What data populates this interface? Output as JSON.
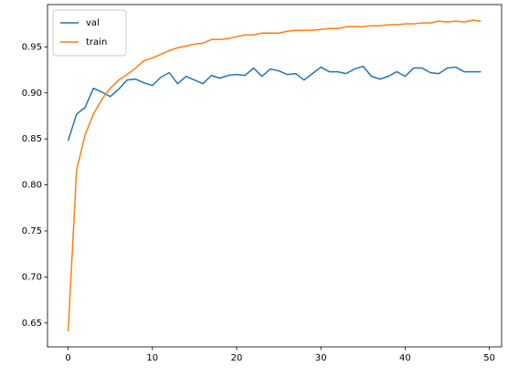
{
  "chart_data": {
    "type": "line",
    "x": [
      0,
      1,
      2,
      3,
      4,
      5,
      6,
      7,
      8,
      9,
      10,
      11,
      12,
      13,
      14,
      15,
      16,
      17,
      18,
      19,
      20,
      21,
      22,
      23,
      24,
      25,
      26,
      27,
      28,
      29,
      30,
      31,
      32,
      33,
      34,
      35,
      36,
      37,
      38,
      39,
      40,
      41,
      42,
      43,
      44,
      45,
      46,
      47,
      48,
      49
    ],
    "series": [
      {
        "name": "val",
        "color": "#1f77b4",
        "values": [
          0.848,
          0.877,
          0.884,
          0.905,
          0.901,
          0.896,
          0.904,
          0.914,
          0.915,
          0.911,
          0.908,
          0.917,
          0.922,
          0.91,
          0.918,
          0.914,
          0.91,
          0.919,
          0.916,
          0.919,
          0.92,
          0.919,
          0.927,
          0.918,
          0.926,
          0.924,
          0.92,
          0.921,
          0.914,
          0.921,
          0.928,
          0.923,
          0.923,
          0.921,
          0.926,
          0.929,
          0.918,
          0.915,
          0.918,
          0.923,
          0.918,
          0.927,
          0.927,
          0.922,
          0.921,
          0.927,
          0.928,
          0.923,
          0.923,
          0.923
        ]
      },
      {
        "name": "train",
        "color": "#ff7f0e",
        "values": [
          0.641,
          0.816,
          0.854,
          0.877,
          0.893,
          0.905,
          0.914,
          0.92,
          0.927,
          0.935,
          0.938,
          0.942,
          0.946,
          0.949,
          0.951,
          0.953,
          0.954,
          0.958,
          0.958,
          0.959,
          0.961,
          0.963,
          0.963,
          0.965,
          0.965,
          0.965,
          0.967,
          0.968,
          0.968,
          0.968,
          0.969,
          0.97,
          0.97,
          0.972,
          0.972,
          0.972,
          0.973,
          0.973,
          0.974,
          0.974,
          0.975,
          0.975,
          0.976,
          0.976,
          0.978,
          0.977,
          0.978,
          0.977,
          0.979,
          0.978
        ]
      }
    ],
    "xlim": [
      -2.45,
      51.45
    ],
    "xticks": [
      0,
      10,
      20,
      30,
      40,
      50
    ],
    "ylim": [
      0.624,
      0.996
    ],
    "yticks": [
      0.65,
      {
        "value": 0.7,
        "label": "0.70"
      },
      0.75,
      {
        "value": 0.8,
        "label": "0.80"
      },
      0.85,
      {
        "value": 0.9,
        "label": "0.90"
      },
      0.95
    ],
    "legend": "upper left"
  }
}
